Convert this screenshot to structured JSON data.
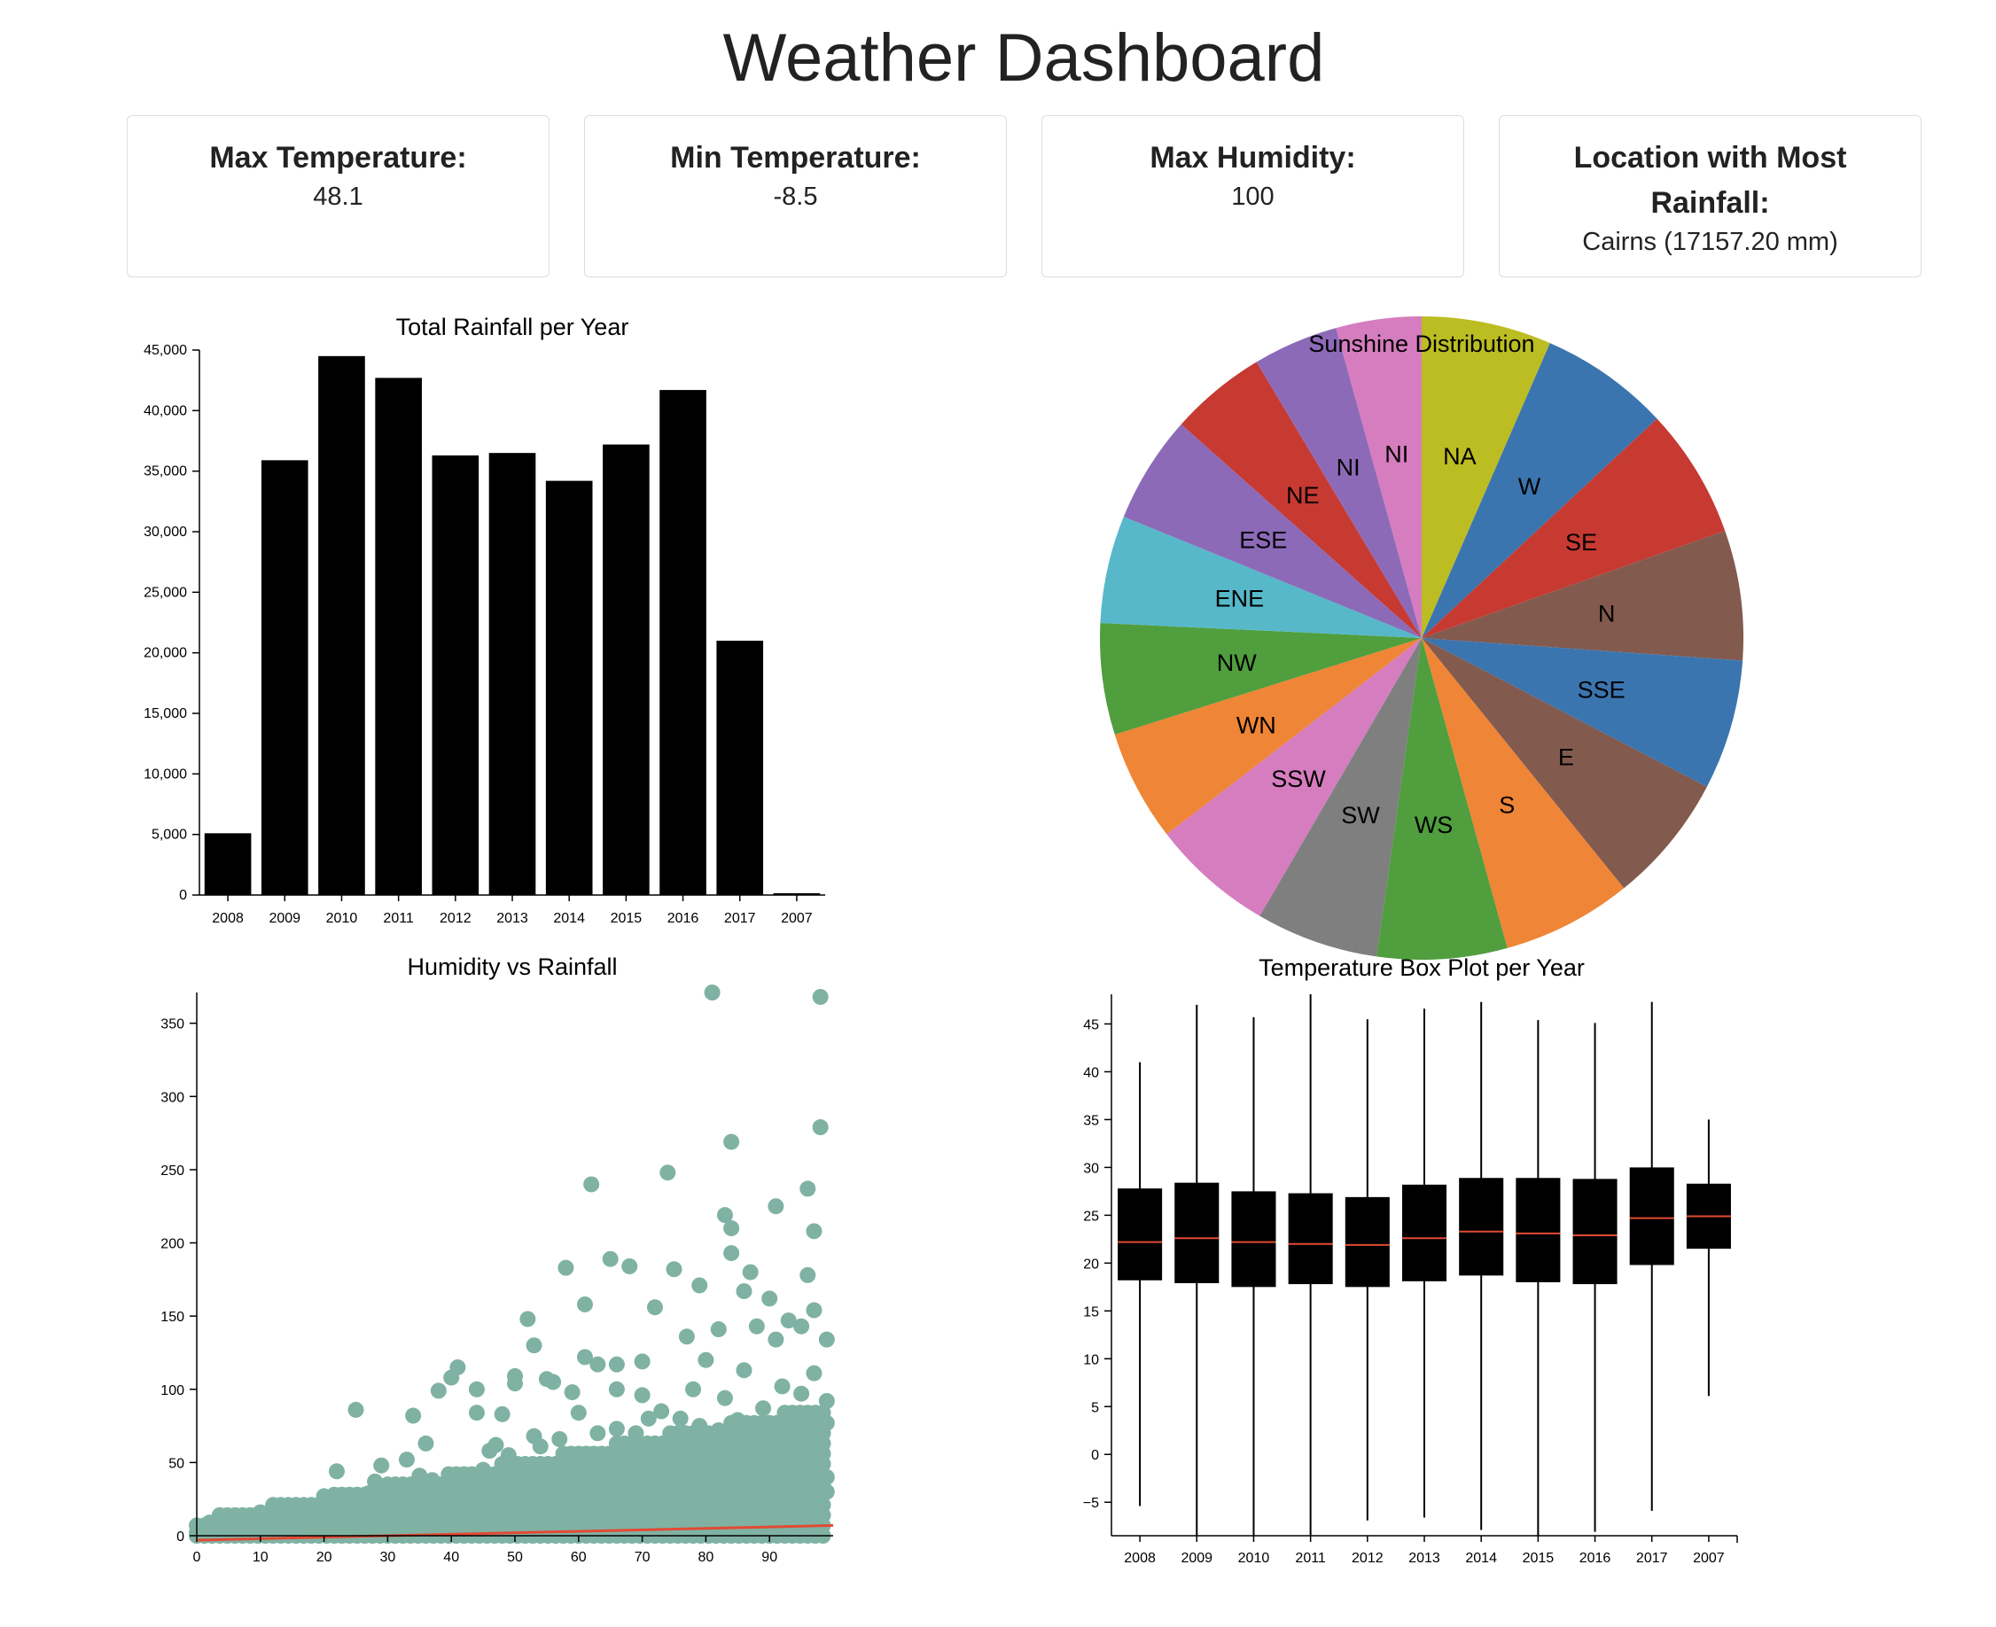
{
  "title": "Weather Dashboard",
  "cards": [
    {
      "title": "Max Temperature:",
      "value": "48.1"
    },
    {
      "title": "Min Temperature:",
      "value": "-8.5"
    },
    {
      "title": "Max Humidity:",
      "value": "100"
    },
    {
      "title": "Location with Most Rainfall:",
      "value": "Cairns (17157.20 mm)"
    }
  ],
  "colors": {
    "bar": "#000000",
    "scatter": "#7fb2a3",
    "trend": "#e34a33",
    "median": "#e34a33",
    "pie": [
      "#bcbd22",
      "#3b75af",
      "#c63a32",
      "#835a4e",
      "#3b75af",
      "#835a4e",
      "#ef8536",
      "#509e3e",
      "#7f7f7f",
      "#d57dbf",
      "#ef8536",
      "#509e3e",
      "#56b8c9",
      "#8d6ab8",
      "#c63a32",
      "#8d6ab8",
      "#d57dbf"
    ]
  },
  "chart_data": [
    {
      "type": "bar",
      "title": "Total Rainfall per Year",
      "categories": [
        "2008",
        "2009",
        "2010",
        "2011",
        "2012",
        "2013",
        "2014",
        "2015",
        "2016",
        "2017",
        "2007"
      ],
      "values": [
        5100,
        35900,
        44500,
        42700,
        36300,
        36500,
        34200,
        37200,
        41700,
        21000,
        150
      ],
      "ylim": [
        0,
        45000
      ],
      "yticks": [
        "0",
        "5,000",
        "10,000",
        "15,000",
        "20,000",
        "25,000",
        "30,000",
        "35,000",
        "40,000",
        "45,000"
      ],
      "ytick_values": [
        0,
        5000,
        10000,
        15000,
        20000,
        25000,
        30000,
        35000,
        40000,
        45000
      ]
    },
    {
      "type": "pie",
      "title": "Sunshine Distribution",
      "labels": [
        "NA",
        "W",
        "SE",
        "N",
        "SSE",
        "E",
        "S",
        "WS",
        "SW",
        "SSW",
        "WN",
        "NW",
        "ENE",
        "ESE",
        "NE",
        "NI",
        "NI"
      ],
      "values": [
        7.0,
        7.0,
        7.0,
        7.0,
        7.0,
        7.0,
        7.0,
        7.0,
        6.6,
        6.6,
        6.0,
        6.0,
        5.8,
        5.8,
        5.2,
        4.6,
        4.6
      ]
    },
    {
      "type": "scatter",
      "title": "Humidity vs Rainfall",
      "xlim": [
        0,
        100
      ],
      "ylim": [
        0,
        371
      ],
      "xticks": [
        0,
        10,
        20,
        30,
        40,
        50,
        60,
        70,
        80,
        90
      ],
      "yticks": [
        0,
        50,
        100,
        150,
        200,
        250,
        300,
        350
      ],
      "points": [
        [
          81,
          371
        ],
        [
          98,
          368
        ],
        [
          98,
          279
        ],
        [
          84,
          269
        ],
        [
          91,
          225
        ],
        [
          62,
          240
        ],
        [
          74,
          248
        ],
        [
          96,
          237
        ],
        [
          97,
          208
        ],
        [
          83,
          219
        ],
        [
          84,
          210
        ],
        [
          65,
          189
        ],
        [
          58,
          183
        ],
        [
          68,
          184
        ],
        [
          75,
          182
        ],
        [
          87,
          180
        ],
        [
          96,
          178
        ],
        [
          84,
          193
        ],
        [
          79,
          171
        ],
        [
          86,
          167
        ],
        [
          90,
          162
        ],
        [
          93,
          147
        ],
        [
          97,
          154
        ],
        [
          72,
          156
        ],
        [
          61,
          158
        ],
        [
          52,
          148
        ],
        [
          53,
          130
        ],
        [
          55,
          107
        ],
        [
          63,
          117
        ],
        [
          41,
          115
        ],
        [
          44,
          100
        ],
        [
          38,
          99
        ],
        [
          40,
          108
        ],
        [
          25,
          86
        ],
        [
          34,
          82
        ],
        [
          36,
          63
        ],
        [
          47,
          62
        ],
        [
          50,
          109
        ],
        [
          50,
          104
        ],
        [
          56,
          105
        ],
        [
          48,
          83
        ],
        [
          44,
          84
        ],
        [
          61,
          122
        ],
        [
          66,
          117
        ],
        [
          70,
          119
        ],
        [
          77,
          136
        ],
        [
          82,
          141
        ],
        [
          91,
          134
        ],
        [
          88,
          143
        ],
        [
          95,
          143
        ],
        [
          99,
          134
        ],
        [
          97,
          111
        ],
        [
          99,
          92
        ],
        [
          92,
          102
        ],
        [
          86,
          113
        ],
        [
          80,
          120
        ],
        [
          70,
          96
        ],
        [
          66,
          100
        ],
        [
          59,
          98
        ],
        [
          60,
          84
        ],
        [
          71,
          80
        ],
        [
          78,
          100
        ],
        [
          83,
          94
        ],
        [
          89,
          87
        ],
        [
          95,
          97
        ],
        [
          99,
          77
        ],
        [
          28,
          37
        ],
        [
          30,
          31
        ],
        [
          22,
          44
        ],
        [
          20,
          27
        ],
        [
          24,
          21
        ],
        [
          29,
          48
        ],
        [
          33,
          52
        ],
        [
          35,
          41
        ],
        [
          37,
          38
        ],
        [
          42,
          41
        ],
        [
          45,
          45
        ],
        [
          46,
          58
        ],
        [
          49,
          55
        ],
        [
          51,
          45
        ],
        [
          53,
          68
        ],
        [
          54,
          61
        ],
        [
          57,
          66
        ],
        [
          63,
          70
        ],
        [
          66,
          73
        ],
        [
          69,
          70
        ],
        [
          73,
          85
        ],
        [
          76,
          80
        ],
        [
          79,
          75
        ],
        [
          82,
          72
        ],
        [
          85,
          79
        ],
        [
          88,
          65
        ],
        [
          92,
          70
        ],
        [
          94,
          75
        ],
        [
          97,
          66
        ],
        [
          10,
          16
        ],
        [
          12,
          18
        ],
        [
          15,
          13
        ],
        [
          18,
          11
        ],
        [
          21,
          17
        ],
        [
          23,
          12
        ],
        [
          26,
          23
        ],
        [
          27,
          29
        ],
        [
          31,
          26
        ],
        [
          32,
          34
        ],
        [
          39,
          30
        ],
        [
          43,
          36
        ],
        [
          47,
          35
        ],
        [
          52,
          38
        ],
        [
          55,
          42
        ],
        [
          58,
          47
        ],
        [
          61,
          50
        ],
        [
          64,
          52
        ],
        [
          67,
          55
        ],
        [
          72,
          58
        ],
        [
          75,
          61
        ],
        [
          78,
          62
        ],
        [
          80,
          59
        ],
        [
          83,
          56
        ],
        [
          86,
          53
        ],
        [
          89,
          50
        ],
        [
          91,
          48
        ],
        [
          93,
          57
        ],
        [
          96,
          52
        ],
        [
          98,
          45
        ],
        [
          99,
          40
        ],
        [
          0,
          2
        ],
        [
          1,
          5
        ],
        [
          2,
          9
        ],
        [
          4,
          3
        ],
        [
          6,
          6
        ],
        [
          8,
          2
        ],
        [
          10,
          4
        ],
        [
          12,
          6
        ],
        [
          14,
          3
        ],
        [
          16,
          8
        ],
        [
          18,
          5
        ],
        [
          20,
          9
        ],
        [
          22,
          11
        ],
        [
          24,
          14
        ],
        [
          26,
          10
        ],
        [
          28,
          16
        ],
        [
          30,
          12
        ],
        [
          32,
          20
        ],
        [
          34,
          18
        ],
        [
          36,
          22
        ],
        [
          38,
          24
        ],
        [
          40,
          20
        ],
        [
          42,
          26
        ],
        [
          44,
          28
        ],
        [
          46,
          25
        ],
        [
          48,
          30
        ],
        [
          50,
          32
        ],
        [
          52,
          28
        ],
        [
          54,
          35
        ],
        [
          56,
          33
        ],
        [
          58,
          38
        ],
        [
          60,
          36
        ],
        [
          62,
          40
        ],
        [
          64,
          42
        ],
        [
          66,
          38
        ],
        [
          68,
          44
        ],
        [
          70,
          46
        ],
        [
          72,
          42
        ],
        [
          74,
          48
        ],
        [
          76,
          50
        ],
        [
          78,
          46
        ],
        [
          80,
          52
        ],
        [
          82,
          48
        ],
        [
          84,
          45
        ],
        [
          86,
          44
        ],
        [
          88,
          40
        ],
        [
          90,
          42
        ],
        [
          92,
          38
        ],
        [
          94,
          40
        ],
        [
          96,
          36
        ],
        [
          98,
          34
        ],
        [
          99,
          30
        ]
      ],
      "trend": [
        [
          0,
          -3
        ],
        [
          100,
          7
        ]
      ]
    },
    {
      "type": "box",
      "title": "Temperature Box Plot per Year",
      "categories": [
        "2008",
        "2009",
        "2010",
        "2011",
        "2012",
        "2013",
        "2014",
        "2015",
        "2016",
        "2017",
        "2007"
      ],
      "ylim": [
        -8.5,
        48.1
      ],
      "yticks": [
        -5,
        0,
        5,
        10,
        15,
        20,
        25,
        30,
        35,
        40,
        45
      ],
      "boxes": [
        {
          "min": -5.4,
          "q1": 18.2,
          "median": 22.2,
          "q3": 27.8,
          "max": 41.0
        },
        {
          "min": -8.5,
          "q1": 17.9,
          "median": 22.6,
          "q3": 28.4,
          "max": 47.0
        },
        {
          "min": -8.5,
          "q1": 17.5,
          "median": 22.2,
          "q3": 27.5,
          "max": 45.7
        },
        {
          "min": -8.5,
          "q1": 17.8,
          "median": 22.0,
          "q3": 27.3,
          "max": 48.1
        },
        {
          "min": -6.9,
          "q1": 17.5,
          "median": 21.9,
          "q3": 26.9,
          "max": 45.5
        },
        {
          "min": -6.6,
          "q1": 18.1,
          "median": 22.6,
          "q3": 28.2,
          "max": 46.6
        },
        {
          "min": -7.9,
          "q1": 18.7,
          "median": 23.3,
          "q3": 28.9,
          "max": 47.3
        },
        {
          "min": -8.5,
          "q1": 18.0,
          "median": 23.1,
          "q3": 28.9,
          "max": 45.4
        },
        {
          "min": -8.1,
          "q1": 17.8,
          "median": 22.9,
          "q3": 28.8,
          "max": 45.1
        },
        {
          "min": -5.9,
          "q1": 19.8,
          "median": 24.7,
          "q3": 30.0,
          "max": 47.3
        },
        {
          "min": 6.1,
          "q1": 21.5,
          "median": 24.9,
          "q3": 28.3,
          "max": 35.0
        }
      ]
    }
  ]
}
